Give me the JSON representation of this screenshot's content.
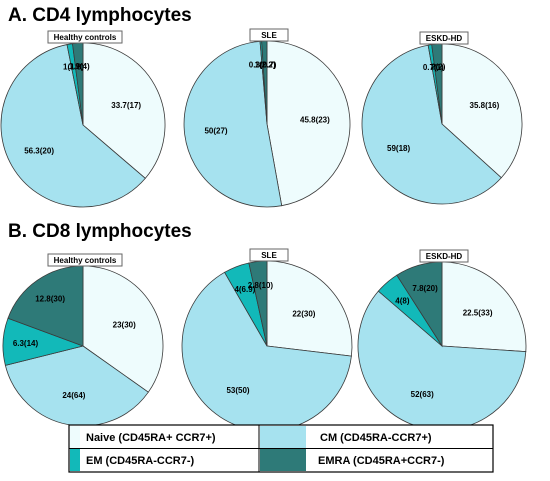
{
  "legend": [
    {
      "key": "naive",
      "label": "Naive (CD45RA+ CCR7+)",
      "color": "#eefcfd"
    },
    {
      "key": "cm",
      "label": "CM (CD45RA-CCR7+)",
      "color": "#a6e2ef"
    },
    {
      "key": "em",
      "label": "EM (CD45RA-CCR7-)",
      "color": "#12b9b9"
    },
    {
      "key": "emra",
      "label": "EMRA (CD45RA+CCR7-)",
      "color": "#2e7a78"
    }
  ],
  "sections": [
    {
      "title": "A. CD4 lymphocytes"
    },
    {
      "title": "B. CD8 lymphocytes"
    }
  ],
  "chart_data": [
    {
      "type": "pie",
      "section": "A. CD4 lymphocytes",
      "title": "Healthy controls",
      "categories": [
        "Naive",
        "CM",
        "EM",
        "EMRA"
      ],
      "values": [
        33.7,
        56.3,
        1,
        1.9
      ],
      "labels": [
        "33.7(17)",
        "56.3(20)",
        "1(1.8)",
        "1.9(4)"
      ]
    },
    {
      "type": "pie",
      "section": "A. CD4 lymphocytes",
      "title": "SLE",
      "categories": [
        "Naive",
        "CM",
        "EM",
        "EMRA"
      ],
      "values": [
        45.8,
        50,
        0.3,
        1
      ],
      "labels": [
        "45.8(23)",
        "50(27)",
        "0.3(0.7)",
        "1(2.2)"
      ]
    },
    {
      "type": "pie",
      "section": "A. CD4 lymphocytes",
      "title": "ESKD-HD",
      "categories": [
        "Naive",
        "CM",
        "EM",
        "EMRA"
      ],
      "values": [
        35.8,
        59,
        0.7,
        2
      ],
      "labels": [
        "35.8(16)",
        "59(18)",
        "0.7(1)",
        "2(2)"
      ]
    },
    {
      "type": "pie",
      "section": "B. CD8 lymphocytes",
      "title": "Healthy controls",
      "categories": [
        "Naive",
        "CM",
        "EM",
        "EMRA"
      ],
      "values": [
        23,
        24,
        6.3,
        12.8
      ],
      "labels": [
        "23(30)",
        "24(64)",
        "6.3(14)",
        "12.8(30)"
      ]
    },
    {
      "type": "pie",
      "section": "B. CD8 lymphocytes",
      "title": "SLE",
      "categories": [
        "Naive",
        "CM",
        "EM",
        "EMRA"
      ],
      "values": [
        22,
        53,
        4,
        2.8
      ],
      "labels": [
        "22(30)",
        "53(50)",
        "4(6.9)",
        "2.8(10)"
      ]
    },
    {
      "type": "pie",
      "section": "B. CD8 lymphocytes",
      "title": "ESKD-HD",
      "categories": [
        "Naive",
        "CM",
        "EM",
        "EMRA"
      ],
      "values": [
        22.5,
        52,
        4,
        7.8
      ],
      "labels": [
        "22.5(33)",
        "52(63)",
        "4(8)",
        "7.8(20)"
      ]
    }
  ]
}
